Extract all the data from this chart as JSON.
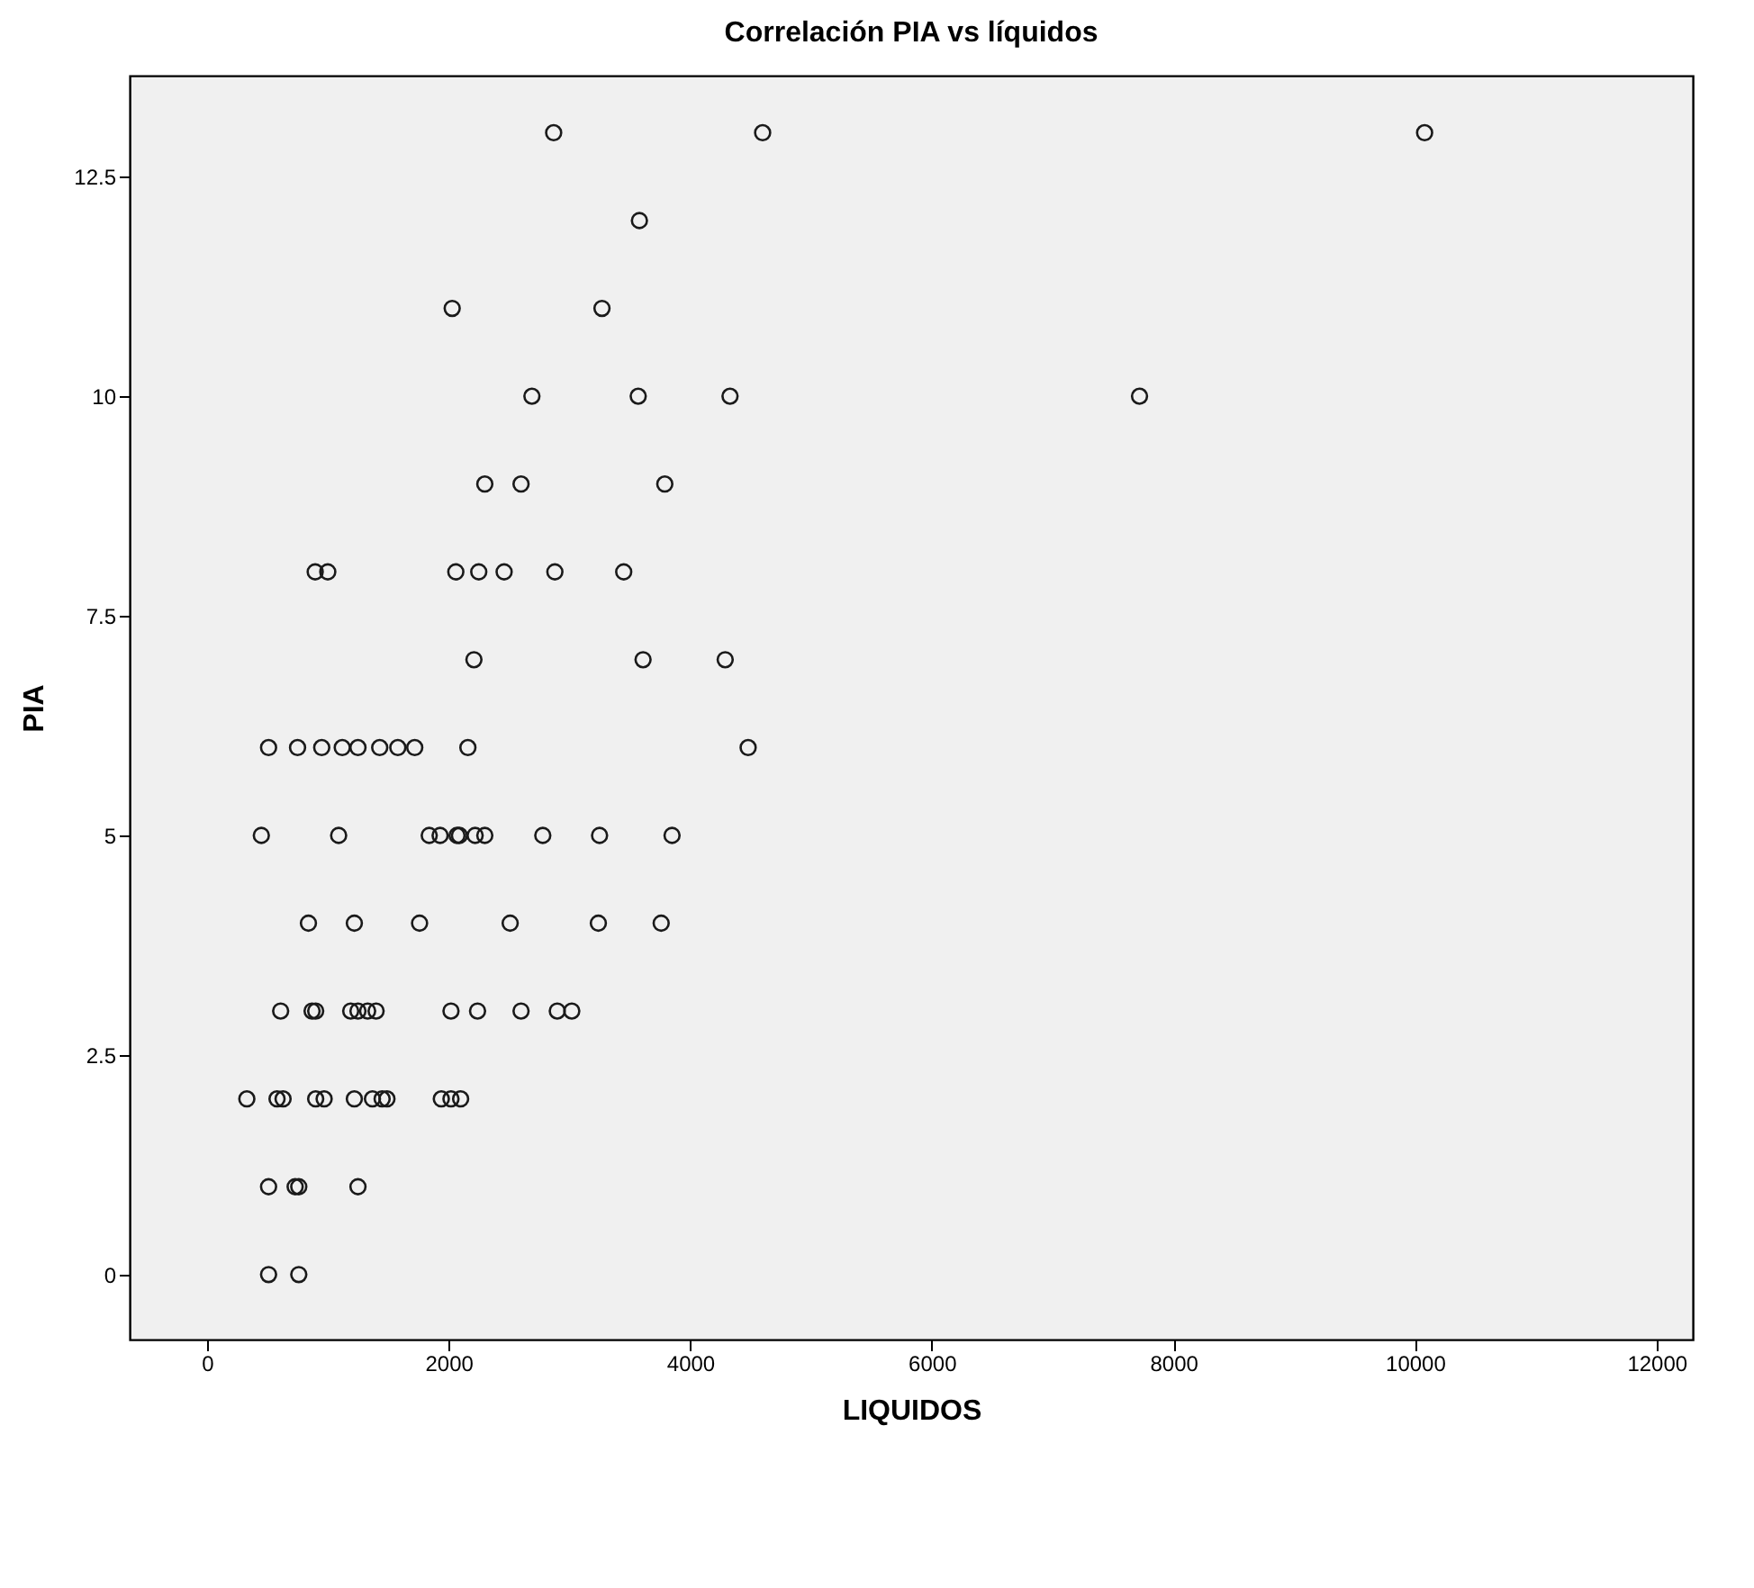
{
  "chart_data": {
    "type": "scatter",
    "title": "Correlación PIA vs líquidos",
    "xlabel": "LIQUIDOS",
    "ylabel": "PIA",
    "marker": "circle",
    "grid": false,
    "xlim": [
      -640,
      12300
    ],
    "ylim": [
      -0.74,
      13.65
    ],
    "xticks": [
      0,
      2000,
      4000,
      6000,
      8000,
      10000,
      12000
    ],
    "yticks": [
      0,
      2.5,
      5,
      7.5,
      10,
      12.5
    ],
    "series": [
      {
        "color": "#1a1a1a",
        "x": [
          2870,
          4600,
          10080,
          3580,
          2030,
          3270,
          2690,
          3570,
          4330,
          7720,
          2300,
          2600,
          3790,
          896,
          1000,
          2060,
          2250,
          2460,
          2880,
          3450,
          2210,
          3610,
          4290,
          510,
          750,
          950,
          1120,
          1250,
          1430,
          1580,
          1720,
          2160,
          4480,
          450,
          1090,
          1840,
          1930,
          2070,
          2090,
          2220,
          2300,
          2780,
          3250,
          3850,
          840,
          1220,
          1760,
          2510,
          3240,
          3760,
          610,
          870,
          900,
          1190,
          1250,
          1330,
          1400,
          2020,
          2240,
          2600,
          2900,
          3020,
          330,
          580,
          630,
          900,
          970,
          1220,
          1370,
          1450,
          1490,
          1940,
          2020,
          2100,
          510,
          730,
          760,
          1250,
          510,
          760
        ],
        "values": [
          13,
          13,
          13,
          12,
          11,
          11,
          10,
          10,
          10,
          10,
          9,
          9,
          9,
          8,
          8,
          8,
          8,
          8,
          8,
          8,
          7,
          7,
          7,
          6,
          6,
          6,
          6,
          6,
          6,
          6,
          6,
          6,
          6,
          5,
          5,
          5,
          5,
          5,
          5,
          5,
          5,
          5,
          5,
          5,
          4,
          4,
          4,
          4,
          4,
          4,
          3,
          3,
          3,
          3,
          3,
          3,
          3,
          3,
          3,
          3,
          3,
          3,
          2,
          2,
          2,
          2,
          2,
          2,
          2,
          2,
          2,
          2,
          2,
          2,
          1,
          1,
          1,
          1,
          0,
          0
        ]
      }
    ]
  }
}
